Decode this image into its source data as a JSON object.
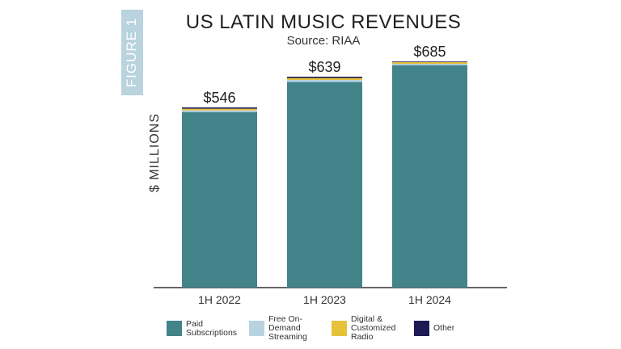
{
  "figure_label": "FIGURE 1",
  "chart_data": {
    "type": "bar",
    "stacked": true,
    "title": "US LATIN MUSIC REVENUES",
    "subtitle": "Source: RIAA",
    "ylabel": "$ MILLIONS",
    "categories": [
      "1H 2022",
      "1H 2023",
      "1H 2024"
    ],
    "totals_labels": [
      "$546",
      "$639",
      "$685"
    ],
    "totals": [
      546,
      639,
      685
    ],
    "ylim": [
      0,
      700
    ],
    "grid": false,
    "legend_position": "bottom",
    "series": [
      {
        "name": "Paid\nSubscriptions",
        "values": [
          532,
          623,
          674
        ],
        "color": "#43838a"
      },
      {
        "name": "Free On-Demand\nStreaming",
        "values": [
          5,
          6,
          4
        ],
        "color": "#b7d3e0"
      },
      {
        "name": "Digital &\nCustomized Radio",
        "values": [
          5,
          6,
          5
        ],
        "color": "#e6c23a"
      },
      {
        "name": "Other",
        "values": [
          4,
          4,
          2
        ],
        "color": "#1d1a55"
      }
    ]
  }
}
